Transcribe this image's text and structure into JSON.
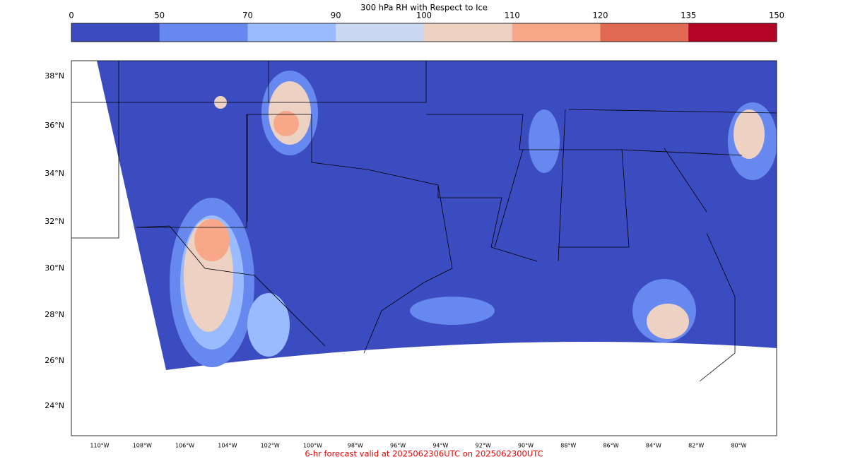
{
  "colorbar": {
    "title": "300 hPa RH with Respect to Ice",
    "ticks": [
      "0",
      "50",
      "70",
      "90",
      "100",
      "110",
      "120",
      "135",
      "150"
    ],
    "colors": [
      "#3b4cc0",
      "#6788ee",
      "#9abbff",
      "#c9d7f0",
      "#edd1c2",
      "#f7a889",
      "#e26952",
      "#b40426"
    ]
  },
  "map": {
    "lat_labels": [
      "38°N",
      "36°N",
      "34°N",
      "32°N",
      "30°N",
      "28°N",
      "26°N",
      "24°N"
    ],
    "lon_labels": [
      "110°W",
      "108°W",
      "106°W",
      "104°W",
      "102°W",
      "100°W",
      "98°W",
      "96°W",
      "94°W",
      "92°W",
      "90°W",
      "88°W",
      "86°W",
      "84°W",
      "82°W",
      "80°W"
    ]
  },
  "footer": "6-hr forecast valid at 2025062306UTC on 2025062300UTC"
}
